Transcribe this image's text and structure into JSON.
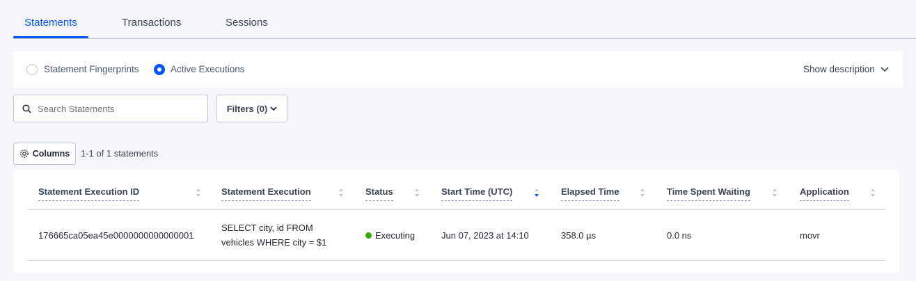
{
  "tabs": [
    {
      "label": "Statements",
      "active": true
    },
    {
      "label": "Transactions"
    },
    {
      "label": "Sessions"
    }
  ],
  "view_toggle": {
    "options": [
      {
        "label": "Statement Fingerprints",
        "selected": false
      },
      {
        "label": "Active Executions",
        "selected": true
      }
    ],
    "show_description": "Show description"
  },
  "search": {
    "placeholder": "Search Statements",
    "value": ""
  },
  "filters": {
    "label": "Filters (0)"
  },
  "columns": {
    "label": "Columns",
    "count": "1-1 of 1 statements"
  },
  "table": {
    "headers": [
      "Statement Execution ID",
      "Statement Execution",
      "Status",
      "Start Time (UTC)",
      "Elapsed Time",
      "Time Spent Waiting",
      "Application"
    ],
    "sorted_column": "Start Time (UTC)",
    "sort_direction": "descending",
    "rows": [
      {
        "id": "176665ca05ea45e0000000000000001",
        "statement_line1": "SELECT city, id FROM",
        "statement_line2": "vehicles WHERE city = $1",
        "status": "Executing",
        "start_time": "Jun 07, 2023 at 14:10",
        "elapsed": "358.0 µs",
        "waiting": "0.0 ns",
        "application": "movr"
      }
    ]
  },
  "colors": {
    "accent": "#0055ff",
    "executing": "#37a806"
  }
}
